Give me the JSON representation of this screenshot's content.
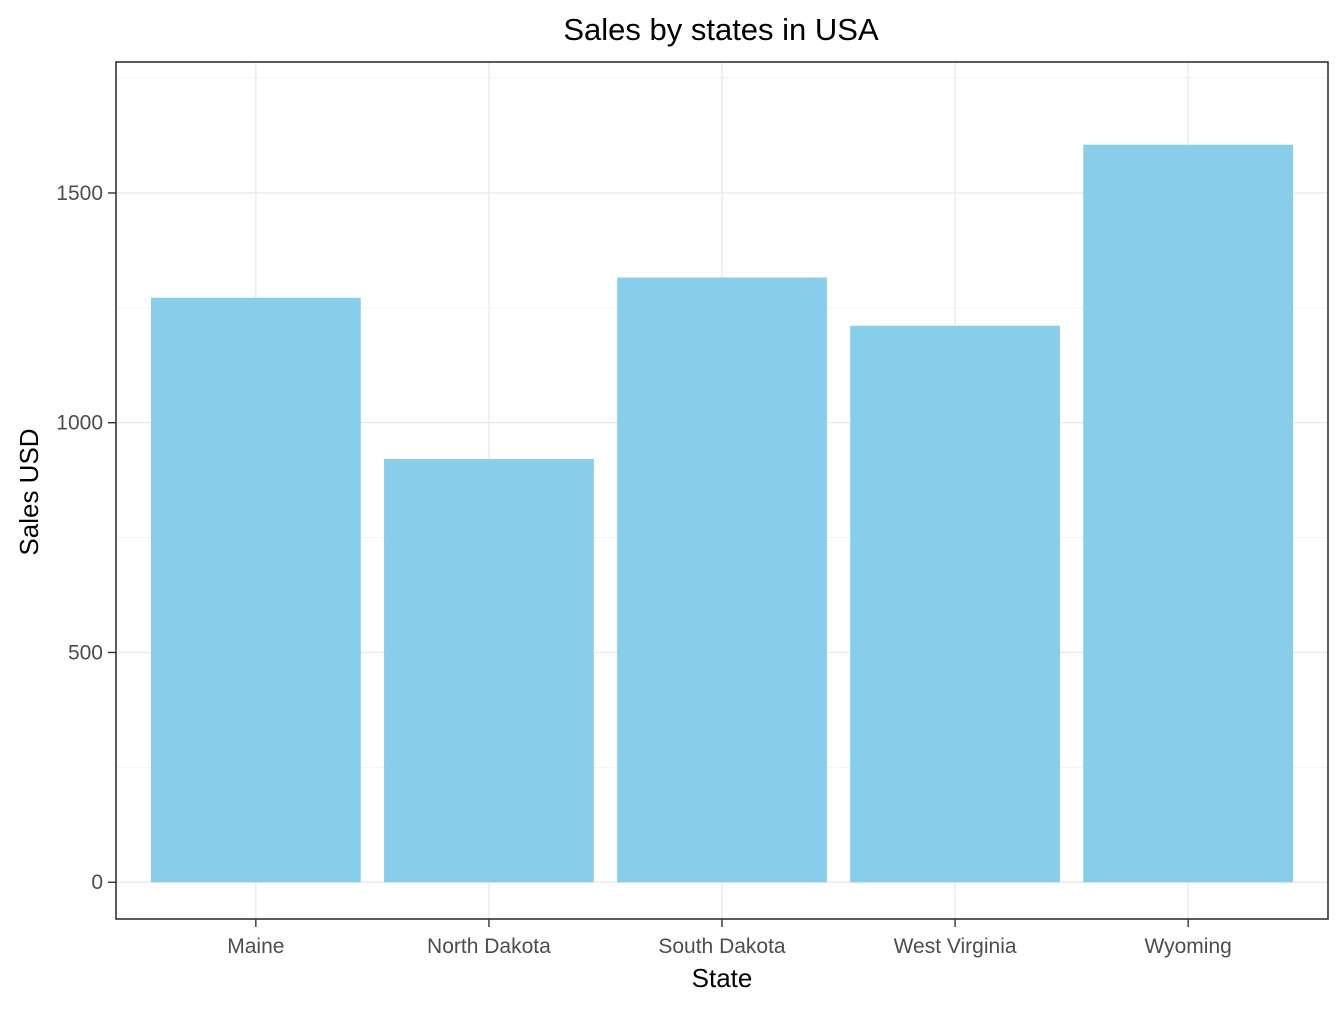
{
  "chart_data": {
    "type": "bar",
    "title": "Sales by states in USA",
    "xlabel": "State",
    "ylabel": "Sales USD",
    "categories": [
      "Maine",
      "North Dakota",
      "South Dakota",
      "West Virginia",
      "Wyoming"
    ],
    "values": [
      1272,
      921,
      1316,
      1211,
      1605
    ],
    "ylim": [
      -80,
      1785
    ],
    "yticks": [
      0,
      500,
      1000,
      1500
    ],
    "ytick_labels": [
      "0",
      "500",
      "1000",
      "1500"
    ],
    "grid": true,
    "bar_color": "#87CEEB",
    "theme": "bw"
  }
}
